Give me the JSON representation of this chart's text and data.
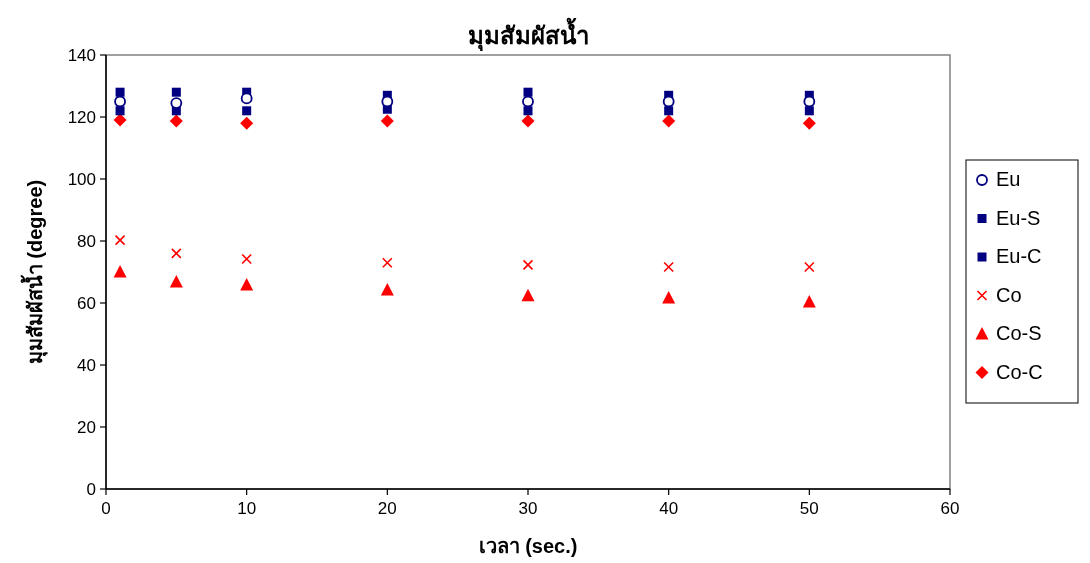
{
  "chart_data": {
    "type": "scatter",
    "title": "มุมสัมผัสน้ำ",
    "xlabel": "เวลา (sec.)",
    "ylabel": "มุมสัมผัสน้ำ (degree)",
    "x": [
      1,
      5,
      10,
      20,
      30,
      40,
      50
    ],
    "xlim": [
      0,
      60
    ],
    "xticks": [
      0,
      10,
      20,
      30,
      40,
      50,
      60
    ],
    "ylim": [
      0,
      140
    ],
    "yticks": [
      0,
      20,
      40,
      60,
      80,
      100,
      120,
      140
    ],
    "grid": false,
    "legend": "right",
    "series": [
      {
        "name": "Eu",
        "color": "#000080",
        "marker": "circle",
        "values": [
          125,
          124.5,
          126,
          125,
          125,
          125,
          125
        ]
      },
      {
        "name": "Eu-S",
        "color": "#000080",
        "marker": "square",
        "values": [
          128,
          128,
          128,
          127,
          128,
          127,
          127
        ]
      },
      {
        "name": "Eu-C",
        "color": "#000080",
        "marker": "square",
        "values": [
          122,
          122,
          122,
          122.5,
          122,
          122,
          122
        ]
      },
      {
        "name": "Co",
        "color": "#ff0000",
        "marker": "cross",
        "values": [
          80.3,
          76,
          74.2,
          73,
          72.3,
          71.6,
          71.6
        ]
      },
      {
        "name": "Co-S",
        "color": "#ff0000",
        "marker": "triangle",
        "values": [
          70,
          66.8,
          65.8,
          64.2,
          62.3,
          61.6,
          60.3
        ]
      },
      {
        "name": "Co-C",
        "color": "#ff0000",
        "marker": "diamond",
        "values": [
          119,
          118.7,
          118,
          118.7,
          118.7,
          118.7,
          118
        ]
      }
    ]
  }
}
